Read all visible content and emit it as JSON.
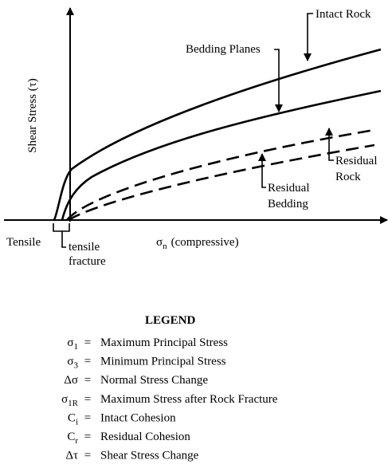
{
  "diagram": {
    "y_axis_label": "Shear Stress (τ)",
    "x_axis_label": {
      "symbol": "σ",
      "sub": "n",
      "text": "(compressive)"
    },
    "labels": {
      "intact_rock": "Intact Rock",
      "bedding_planes": "Bedding Planes",
      "residual_rock": [
        "Residual",
        "Rock"
      ],
      "residual_bedding": [
        "Residual",
        "Bedding"
      ],
      "tensile": "Tensile",
      "tensile_fracture": [
        "tensile",
        "fracture"
      ]
    }
  },
  "legend": {
    "title": "LEGEND",
    "separator": "=",
    "items": [
      {
        "symbol": "σ",
        "sub": "1",
        "text": "Maximum Principal Stress"
      },
      {
        "symbol": "σ",
        "sub": "3",
        "text": "Minimum Principal Stress"
      },
      {
        "symbol": "Δσ",
        "text": "Normal Stress Change"
      },
      {
        "symbol": "σ",
        "sub": "1R",
        "text": "Maximum Stress after Rock Fracture"
      },
      {
        "symbol": "C",
        "sub": "i",
        "text": "Intact Cohesion"
      },
      {
        "symbol": "C",
        "sub": "r",
        "text": "Residual Cohesion"
      },
      {
        "symbol": "Δτ",
        "text": "Shear Stress Change"
      }
    ]
  }
}
